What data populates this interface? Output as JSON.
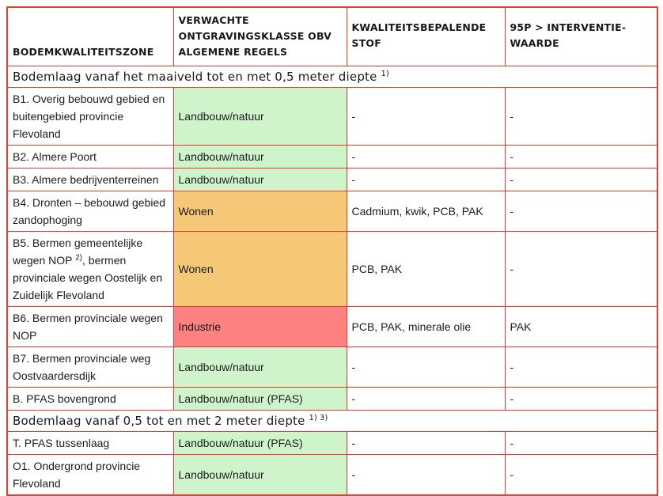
{
  "colors": {
    "border": "#f03b2c",
    "class_green": "#cff4cc",
    "class_orange": "#f5c877",
    "class_red": "#fc8181",
    "text": "#1c1c1c"
  },
  "table": {
    "header_columns": [
      "BODEMKWALITEITSZONE",
      "VERWACHTE ONTGRAVINGSKLASSE OBV ALGEMENE REGELS",
      "KWALITEITSBEPALENDE STOF",
      "95P > INTERVENTIE-WAARDE"
    ],
    "rows": [
      {
        "type": "section",
        "text": "Bodemlaag vanaf het maaiveld tot en met 0,5 meter diepte ^{1)}"
      },
      {
        "type": "data",
        "zone": "B1. Overig bebouwd gebied en buitengebied provincie Flevoland",
        "klasse": "Landbouw/natuur",
        "klasse_color": "green",
        "stof": "-",
        "p95": "-"
      },
      {
        "type": "data",
        "zone": "B2. Almere Poort",
        "klasse": "Landbouw/natuur",
        "klasse_color": "green",
        "stof": "-",
        "p95": "-"
      },
      {
        "type": "data",
        "zone": "B3. Almere bedrijventerreinen",
        "klasse": "Landbouw/natuur",
        "klasse_color": "green",
        "stof": "-",
        "p95": "-"
      },
      {
        "type": "data",
        "zone": "B4. Dronten – bebouwd gebied zandophoging",
        "klasse": "Wonen",
        "klasse_color": "orange",
        "stof": "Cadmium, kwik, PCB, PAK",
        "p95": "-"
      },
      {
        "type": "data",
        "zone": "B5. Bermen gemeentelijke wegen NOP ^{2)}, bermen provinciale wegen Oostelijk en Zuidelijk Flevoland",
        "klasse": "Wonen",
        "klasse_color": "orange",
        "stof": "PCB, PAK",
        "p95": "-"
      },
      {
        "type": "data",
        "zone": "B6. Bermen provinciale wegen NOP",
        "klasse": "Industrie",
        "klasse_color": "red",
        "stof": "PCB, PAK, minerale olie",
        "p95": "PAK"
      },
      {
        "type": "data",
        "zone": "B7. Bermen provinciale weg Oostvaardersdijk",
        "klasse": "Landbouw/natuur",
        "klasse_color": "green",
        "stof": "-",
        "p95": "-"
      },
      {
        "type": "data",
        "zone": "B. PFAS bovengrond",
        "klasse": "Landbouw/natuur (PFAS)",
        "klasse_color": "green",
        "stof": "-",
        "p95": "-"
      },
      {
        "type": "section",
        "text": "Bodemlaag vanaf 0,5 tot en met 2 meter diepte ^{1) 3)}"
      },
      {
        "type": "data",
        "zone": "T. PFAS tussenlaag",
        "klasse": "Landbouw/natuur (PFAS)",
        "klasse_color": "green",
        "stof": "-",
        "p95": "-"
      },
      {
        "type": "data",
        "zone": "O1. Ondergrond provincie Flevoland",
        "klasse": "Landbouw/natuur",
        "klasse_color": "green",
        "stof": "-",
        "p95": "-"
      }
    ]
  }
}
